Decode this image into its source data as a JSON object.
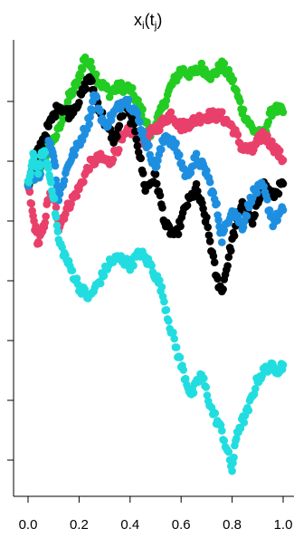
{
  "chart_data": {
    "type": "scatter",
    "title": {
      "base": "x",
      "sub1": "i",
      "paren_open": "(",
      "inner": "t",
      "sub2": "j",
      "paren_close": ")"
    },
    "xlabel": "",
    "ylabel": "",
    "xlim": [
      0.0,
      1.0
    ],
    "x_ticks": [
      0.0,
      0.2,
      0.4,
      0.6,
      0.8,
      1.0
    ],
    "x_tick_labels": [
      "0.0",
      "0.2",
      "0.4",
      "0.6",
      "0.8",
      "1.0"
    ],
    "y_tick_count": 7,
    "grid": false,
    "legend": "none",
    "series": [
      {
        "color": "#22cc22",
        "x": [
          0.0,
          0.04,
          0.08,
          0.12,
          0.16,
          0.2,
          0.22,
          0.25,
          0.28,
          0.32,
          0.36,
          0.4,
          0.44,
          0.48,
          0.52,
          0.56,
          0.6,
          0.64,
          0.68,
          0.72,
          0.76,
          0.8,
          0.84,
          0.88,
          0.92,
          0.96,
          1.0
        ],
        "y": [
          0.0,
          0.18,
          0.52,
          0.76,
          1.22,
          1.48,
          1.78,
          1.65,
          1.44,
          1.3,
          1.38,
          1.35,
          1.08,
          0.72,
          1.02,
          1.38,
          1.62,
          1.55,
          1.65,
          1.52,
          1.68,
          1.48,
          1.05,
          0.78,
          0.68,
          1.08,
          1.02
        ]
      },
      {
        "color": "#e8406a",
        "x": [
          0.0,
          0.02,
          0.04,
          0.06,
          0.08,
          0.1,
          0.12,
          0.16,
          0.2,
          0.24,
          0.28,
          0.32,
          0.36,
          0.4,
          0.44,
          0.48,
          0.52,
          0.56,
          0.6,
          0.64,
          0.68,
          0.72,
          0.76,
          0.8,
          0.84,
          0.88,
          0.92,
          0.96,
          1.0
        ],
        "y": [
          0.0,
          -0.45,
          -0.82,
          -0.62,
          -0.18,
          -0.12,
          -0.58,
          -0.28,
          -0.05,
          0.28,
          0.38,
          0.32,
          0.58,
          0.78,
          0.62,
          0.72,
          0.85,
          1.0,
          0.82,
          0.88,
          0.95,
          0.98,
          0.96,
          0.82,
          0.52,
          0.48,
          0.72,
          0.55,
          0.35
        ]
      },
      {
        "color": "#000000",
        "x": [
          0.0,
          0.04,
          0.08,
          0.12,
          0.16,
          0.2,
          0.24,
          0.26,
          0.3,
          0.34,
          0.38,
          0.42,
          0.46,
          0.5,
          0.54,
          0.58,
          0.62,
          0.66,
          0.7,
          0.74,
          0.76,
          0.8,
          0.84,
          0.88,
          0.92,
          0.96,
          1.0
        ],
        "y": [
          0.0,
          0.48,
          0.82,
          1.12,
          1.0,
          1.18,
          1.52,
          1.28,
          0.88,
          0.62,
          1.12,
          0.78,
          -0.05,
          0.12,
          -0.58,
          -0.72,
          -0.28,
          -0.05,
          -0.52,
          -1.32,
          -1.48,
          -0.78,
          -0.22,
          -0.55,
          0.02,
          -0.15,
          0.02
        ]
      },
      {
        "color": "#1e8fe0",
        "x": [
          0.0,
          0.04,
          0.08,
          0.1,
          0.12,
          0.16,
          0.2,
          0.24,
          0.26,
          0.3,
          0.34,
          0.38,
          0.42,
          0.46,
          0.5,
          0.54,
          0.58,
          0.62,
          0.66,
          0.7,
          0.74,
          0.76,
          0.8,
          0.84,
          0.88,
          0.92,
          0.96,
          1.0
        ],
        "y": [
          0.0,
          0.12,
          0.58,
          0.45,
          -0.18,
          0.32,
          0.58,
          0.92,
          1.28,
          0.82,
          1.02,
          1.22,
          1.05,
          0.62,
          0.25,
          0.72,
          0.52,
          0.12,
          0.38,
          0.18,
          -0.32,
          -0.75,
          -0.32,
          -0.58,
          -0.12,
          -0.02,
          -0.52,
          -0.35
        ]
      },
      {
        "color": "#22dde0",
        "x": [
          0.0,
          0.02,
          0.04,
          0.06,
          0.08,
          0.1,
          0.12,
          0.16,
          0.2,
          0.24,
          0.28,
          0.32,
          0.36,
          0.4,
          0.44,
          0.48,
          0.52,
          0.56,
          0.6,
          0.64,
          0.68,
          0.72,
          0.76,
          0.8,
          0.82,
          0.86,
          0.9,
          0.94,
          0.98,
          1.0
        ],
        "y": [
          0.0,
          0.38,
          0.22,
          0.48,
          0.22,
          -0.15,
          -0.78,
          -1.12,
          -1.42,
          -1.58,
          -1.35,
          -1.08,
          -1.02,
          -1.12,
          -0.95,
          -1.12,
          -1.42,
          -2.02,
          -2.52,
          -2.95,
          -2.65,
          -3.15,
          -3.45,
          -3.98,
          -3.45,
          -3.18,
          -2.72,
          -2.55,
          -2.58,
          -2.52
        ]
      }
    ]
  }
}
